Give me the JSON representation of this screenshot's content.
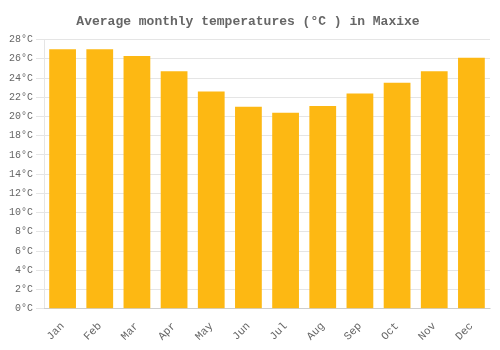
{
  "chart_data": {
    "type": "bar",
    "title": "Average monthly temperatures (°C ) in Maxixe",
    "categories": [
      "Jan",
      "Feb",
      "Mar",
      "Apr",
      "May",
      "Jun",
      "Jul",
      "Aug",
      "Sep",
      "Oct",
      "Nov",
      "Dec"
    ],
    "values": [
      27.0,
      27.0,
      26.3,
      24.7,
      22.6,
      21.0,
      20.4,
      21.1,
      22.4,
      23.5,
      24.7,
      26.1
    ],
    "color": "#FDB813",
    "ylim": [
      0,
      28
    ],
    "yticks": [
      {
        "value": 0,
        "label": "0°C"
      },
      {
        "value": 2,
        "label": "2°C"
      },
      {
        "value": 4,
        "label": "4°C"
      },
      {
        "value": 6,
        "label": "6°C"
      },
      {
        "value": 8,
        "label": "8°C"
      },
      {
        "value": 10,
        "label": "10°C"
      },
      {
        "value": 12,
        "label": "12°C"
      },
      {
        "value": 14,
        "label": "14°C"
      },
      {
        "value": 16,
        "label": "16°C"
      },
      {
        "value": 18,
        "label": "18°C"
      },
      {
        "value": 20,
        "label": "20°C"
      },
      {
        "value": 22,
        "label": "22°C"
      },
      {
        "value": 24,
        "label": "24°C"
      },
      {
        "value": 26,
        "label": "26°C"
      },
      {
        "value": 28,
        "label": "28°C"
      }
    ],
    "grid": true
  }
}
